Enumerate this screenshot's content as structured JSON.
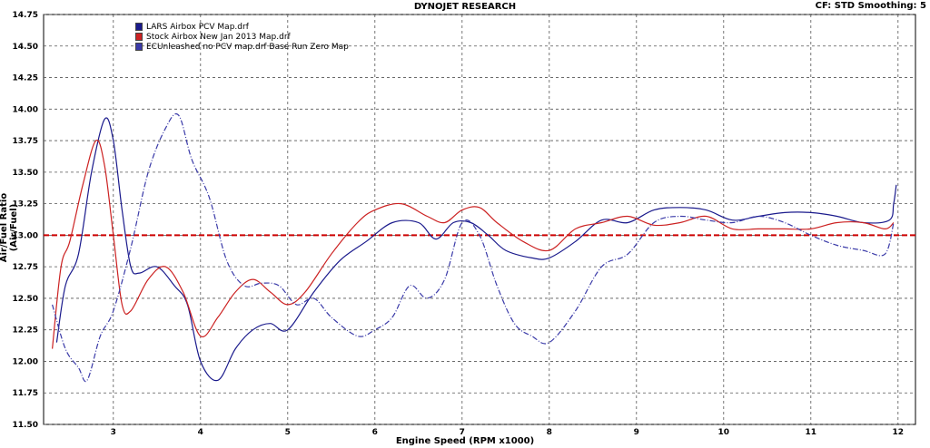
{
  "header": {
    "title": "DYNOJET RESEARCH",
    "cf_label": "CF: STD  Smoothing: 5"
  },
  "chart_data": {
    "type": "line",
    "title": "DYNOJET RESEARCH",
    "xlabel": "Engine Speed (RPM x1000)",
    "ylabel": "Air/Fuel Ratio (Air/Fuel)",
    "xlim": [
      2.2,
      12.2
    ],
    "ylim": [
      11.5,
      14.75
    ],
    "xticks": [
      3,
      4,
      5,
      6,
      7,
      8,
      9,
      10,
      11,
      12
    ],
    "yticks": [
      11.5,
      11.75,
      12.0,
      12.25,
      12.5,
      12.75,
      13.0,
      13.25,
      13.5,
      13.75,
      14.0,
      14.25,
      14.5,
      14.75
    ],
    "grid": true,
    "legend_position": "top-left",
    "reference_line": {
      "y": 13.0,
      "color": "#cc0000"
    },
    "series": [
      {
        "name": "LARS Airbox PCV Map.drf",
        "color": "#1a1a8c",
        "style": "solid",
        "x": [
          2.35,
          2.45,
          2.6,
          2.75,
          2.9,
          3.0,
          3.1,
          3.2,
          3.3,
          3.5,
          3.7,
          3.85,
          4.0,
          4.2,
          4.4,
          4.6,
          4.8,
          5.0,
          5.3,
          5.6,
          5.9,
          6.2,
          6.5,
          6.7,
          6.9,
          7.1,
          7.3,
          7.5,
          7.8,
          8.0,
          8.3,
          8.6,
          8.9,
          9.2,
          9.5,
          9.8,
          10.1,
          10.4,
          10.7,
          11.0,
          11.3,
          11.6,
          11.9,
          11.95,
          11.98
        ],
        "values": [
          12.15,
          12.6,
          12.85,
          13.5,
          13.92,
          13.75,
          13.2,
          12.75,
          12.7,
          12.75,
          12.6,
          12.45,
          12.0,
          11.85,
          12.1,
          12.25,
          12.3,
          12.25,
          12.55,
          12.8,
          12.95,
          13.1,
          13.1,
          12.97,
          13.1,
          13.1,
          13.0,
          12.88,
          12.82,
          12.82,
          12.95,
          13.12,
          13.1,
          13.2,
          13.22,
          13.2,
          13.12,
          13.15,
          13.18,
          13.18,
          13.15,
          13.1,
          13.12,
          13.25,
          13.4
        ]
      },
      {
        "name": "Stock Airbox New Jan 2013 Map.drf",
        "color": "#cc2222",
        "style": "solid",
        "x": [
          2.3,
          2.4,
          2.5,
          2.65,
          2.8,
          2.9,
          3.0,
          3.1,
          3.2,
          3.4,
          3.6,
          3.8,
          4.0,
          4.2,
          4.4,
          4.6,
          4.8,
          5.0,
          5.2,
          5.5,
          5.8,
          6.0,
          6.3,
          6.6,
          6.8,
          7.0,
          7.2,
          7.4,
          7.7,
          8.0,
          8.3,
          8.6,
          8.9,
          9.2,
          9.5,
          9.8,
          10.1,
          10.4,
          10.7,
          11.0,
          11.3,
          11.6,
          11.85,
          11.95
        ],
        "values": [
          12.1,
          12.75,
          12.95,
          13.4,
          13.75,
          13.55,
          13.0,
          12.45,
          12.4,
          12.65,
          12.75,
          12.55,
          12.2,
          12.35,
          12.55,
          12.65,
          12.55,
          12.45,
          12.55,
          12.85,
          13.1,
          13.2,
          13.25,
          13.15,
          13.1,
          13.2,
          13.22,
          13.1,
          12.95,
          12.88,
          13.05,
          13.1,
          13.15,
          13.08,
          13.1,
          13.15,
          13.05,
          13.05,
          13.05,
          13.05,
          13.1,
          13.1,
          13.05,
          13.1
        ]
      },
      {
        "name": "ECUnleashed no PCV map.drf Base Run Zero Map",
        "color": "#3a3aa8",
        "style": "dashed",
        "x": [
          2.3,
          2.45,
          2.6,
          2.7,
          2.85,
          3.0,
          3.2,
          3.4,
          3.6,
          3.75,
          3.9,
          4.1,
          4.3,
          4.5,
          4.7,
          4.9,
          5.1,
          5.3,
          5.5,
          5.8,
          6.0,
          6.2,
          6.4,
          6.6,
          6.8,
          7.0,
          7.2,
          7.4,
          7.6,
          7.8,
          8.0,
          8.3,
          8.6,
          8.9,
          9.2,
          9.5,
          9.8,
          10.1,
          10.4,
          10.7,
          11.0,
          11.3,
          11.6,
          11.85,
          11.95
        ],
        "values": [
          12.45,
          12.1,
          11.95,
          11.85,
          12.2,
          12.4,
          12.9,
          13.5,
          13.85,
          13.95,
          13.6,
          13.3,
          12.8,
          12.6,
          12.62,
          12.6,
          12.45,
          12.5,
          12.35,
          12.2,
          12.25,
          12.35,
          12.6,
          12.5,
          12.65,
          13.1,
          13.0,
          12.6,
          12.3,
          12.2,
          12.15,
          12.4,
          12.75,
          12.85,
          13.1,
          13.15,
          13.12,
          13.1,
          13.15,
          13.1,
          13.0,
          12.92,
          12.88,
          12.85,
          13.1
        ]
      }
    ]
  }
}
